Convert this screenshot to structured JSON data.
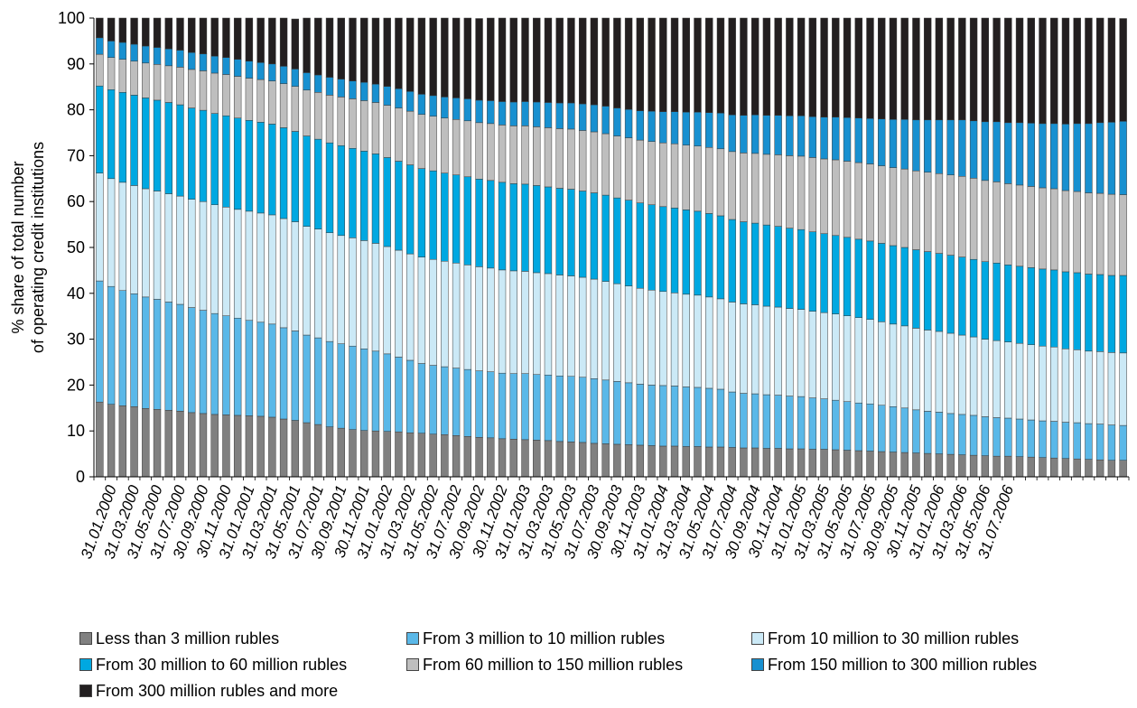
{
  "chart_data": {
    "type": "bar",
    "stacked": true,
    "title": "",
    "ylabel_lines": [
      "% share of total number",
      "of operating credit institutions"
    ],
    "xlabel": "",
    "ylim": [
      0,
      100
    ],
    "yticks": [
      0,
      10,
      20,
      30,
      40,
      50,
      60,
      70,
      80,
      90,
      100
    ],
    "tick_labels": [
      "31.01.2000",
      "31.03.2000",
      "31.05.2000",
      "31.07.2000",
      "30.09.2000",
      "30.11.2000",
      "31.01.2001",
      "31.03.2001",
      "31.05.2001",
      "31.07.2001",
      "30.09.2001",
      "30.11.2001",
      "31.01.2002",
      "31.03.2002",
      "31.05.2002",
      "31.07.2002",
      "30.09.2002",
      "30.11.2002",
      "31.01.2003",
      "31.03.2003",
      "31.05.2003",
      "31.07.2003",
      "30.09.2003",
      "30.11.2003",
      "31.01.2004",
      "31.03.2004",
      "31.05.2004",
      "31.07.2004",
      "30.09.2004",
      "30.11.2004",
      "31.01.2005",
      "31.03.2005",
      "31.05.2005",
      "31.07.2005",
      "30.09.2005",
      "30.11.2005",
      "31.01.2006",
      "31.03.2006",
      "31.05.2006",
      "31.07.2006"
    ],
    "tick_positions": [
      1,
      3,
      5,
      7,
      9,
      11,
      13,
      15,
      17,
      19,
      21,
      23,
      25,
      27,
      29,
      31,
      33,
      35,
      37,
      39,
      41,
      43,
      45,
      47,
      49,
      51,
      53,
      55,
      57,
      59,
      61,
      63,
      65,
      67,
      69,
      71,
      73,
      75,
      77,
      79
    ],
    "grid": false,
    "legend_position": "bottom",
    "series": [
      {
        "name": "Less than 3 million rubles",
        "color": "#808080",
        "values": [
          16.3,
          15.8,
          15.5,
          15.3,
          14.9,
          14.7,
          14.5,
          14.3,
          14,
          13.8,
          13.6,
          13.5,
          13.4,
          13.3,
          13.2,
          13,
          12.6,
          12.3,
          11.8,
          11.4,
          10.9,
          10.6,
          10.3,
          10.1,
          10,
          9.9,
          9.8,
          9.6,
          9.5,
          9.3,
          9.2,
          9,
          8.8,
          8.6,
          8.5,
          8.3,
          8.2,
          8.1,
          8,
          7.9,
          7.7,
          7.6,
          7.5,
          7.3,
          7.2,
          7.1,
          7,
          6.9,
          6.8,
          6.7,
          6.7,
          6.6,
          6.6,
          6.5,
          6.5,
          6.4,
          6.3,
          6.3,
          6.2,
          6.2,
          6.1,
          6.1,
          6,
          6,
          5.9,
          5.8,
          5.7,
          5.6,
          5.5,
          5.4,
          5.3,
          5.2,
          5.1,
          5,
          4.9,
          4.8,
          4.7,
          4.6,
          4.5,
          4.5,
          4.4,
          4.3,
          4.2,
          4.1,
          4,
          3.9,
          3.8,
          3.7,
          3.6,
          3.6
        ]
      },
      {
        "name": "From 3 million to 10 million rubles",
        "color": "#5ab8e8",
        "values": [
          26.4,
          25.7,
          25.1,
          24.6,
          24.3,
          24,
          23.6,
          23.3,
          22.9,
          22.5,
          22,
          21.6,
          21.2,
          20.8,
          20.5,
          20.3,
          19.9,
          19.5,
          19.1,
          18.9,
          18.6,
          18.4,
          18.2,
          17.8,
          17.4,
          16.9,
          16.3,
          15.8,
          15.2,
          15,
          14.8,
          14.7,
          14.6,
          14.5,
          14.4,
          14.3,
          14.3,
          14.4,
          14.3,
          14.3,
          14.3,
          14.3,
          14.2,
          14.1,
          13.9,
          13.7,
          13.5,
          13.3,
          13.2,
          13.2,
          13.1,
          13,
          12.9,
          12.8,
          12.6,
          12.1,
          11.9,
          11.8,
          11.7,
          11.6,
          11.5,
          11.4,
          11.2,
          11,
          10.8,
          10.6,
          10.4,
          10.3,
          10.1,
          9.9,
          9.7,
          9.4,
          9.2,
          9.1,
          8.9,
          8.8,
          8.7,
          8.5,
          8.4,
          8.3,
          8.2,
          8.1,
          8,
          8,
          7.9,
          7.9,
          7.8,
          7.8,
          7.7,
          7.6
        ]
      },
      {
        "name": "From 10 million to 30 million rubles",
        "color": "#cbe9f6",
        "values": [
          23.5,
          23.5,
          23.6,
          23.6,
          23.6,
          23.6,
          23.6,
          23.6,
          23.6,
          23.7,
          23.7,
          23.7,
          23.7,
          23.8,
          23.8,
          23.8,
          23.8,
          23.8,
          23.7,
          23.7,
          23.7,
          23.6,
          23.6,
          23.6,
          23.5,
          23.4,
          23.3,
          23.2,
          23.2,
          23.1,
          23,
          22.9,
          22.8,
          22.7,
          22.6,
          22.5,
          22.4,
          22.3,
          22.2,
          22.1,
          22,
          21.9,
          21.8,
          21.7,
          21.5,
          21.3,
          21.1,
          20.9,
          20.7,
          20.5,
          20.3,
          20.2,
          20.1,
          19.9,
          19.7,
          19.6,
          19.5,
          19.4,
          19.3,
          19.2,
          19.1,
          19,
          18.9,
          18.8,
          18.8,
          18.7,
          18.6,
          18.4,
          18.2,
          18,
          17.9,
          17.8,
          17.7,
          17.6,
          17.5,
          17.3,
          17.1,
          16.9,
          16.8,
          16.6,
          16.5,
          16.4,
          16.3,
          16.2,
          16,
          15.9,
          15.8,
          15.8,
          15.8,
          15.8
        ]
      },
      {
        "name": "From 30 million to 60 million rubles",
        "color": "#00a8e1",
        "values": [
          19,
          19.4,
          19.6,
          19.7,
          19.8,
          19.8,
          19.9,
          19.9,
          19.9,
          19.9,
          19.9,
          19.9,
          19.9,
          19.8,
          19.8,
          19.8,
          19.8,
          19.7,
          19.7,
          19.6,
          19.6,
          19.6,
          19.5,
          19.5,
          19.5,
          19.4,
          19.4,
          19.4,
          19.3,
          19.3,
          19.2,
          19.2,
          19.2,
          19.1,
          19.1,
          19.1,
          19,
          19,
          19,
          18.9,
          18.9,
          18.9,
          18.8,
          18.8,
          18.8,
          18.7,
          18.7,
          18.6,
          18.6,
          18.5,
          18.5,
          18.4,
          18.3,
          18.2,
          18.1,
          18,
          17.9,
          17.8,
          17.7,
          17.6,
          17.5,
          17.4,
          17.3,
          17.2,
          17.1,
          17.1,
          17.1,
          17.1,
          17.1,
          17.1,
          17.1,
          17.1,
          17.1,
          17,
          17,
          17,
          16.9,
          16.9,
          16.9,
          16.8,
          16.8,
          16.8,
          16.8,
          16.8,
          16.8,
          16.8,
          16.8,
          16.8,
          16.8,
          16.9
        ]
      },
      {
        "name": "From 60 million to 150 million rubles",
        "color": "#bebebe",
        "values": [
          6.9,
          7,
          7.2,
          7.4,
          7.6,
          7.8,
          8,
          8.2,
          8.4,
          8.6,
          8.8,
          9,
          9.1,
          9.2,
          9.3,
          9.4,
          9.6,
          9.8,
          10,
          10.2,
          10.4,
          10.6,
          10.8,
          11,
          11.2,
          11.4,
          11.6,
          11.7,
          11.8,
          11.9,
          12,
          12.1,
          12.2,
          12.3,
          12.4,
          12.5,
          12.6,
          12.7,
          12.8,
          12.9,
          13,
          13.1,
          13.2,
          13.3,
          13.4,
          13.5,
          13.6,
          13.7,
          13.8,
          13.9,
          14,
          14.1,
          14.2,
          14.4,
          14.6,
          14.8,
          15,
          15.2,
          15.4,
          15.6,
          15.8,
          16,
          16.2,
          16.3,
          16.5,
          16.6,
          16.7,
          16.8,
          16.9,
          17,
          17.1,
          17.2,
          17.3,
          17.4,
          17.5,
          17.6,
          17.7,
          17.7,
          17.7,
          17.7,
          17.7,
          17.7,
          17.7,
          17.7,
          17.7,
          17.7,
          17.7,
          17.7,
          17.7,
          17.6
        ]
      },
      {
        "name": "From 150 million to 300 million rubles",
        "color": "#1890d0",
        "values": [
          3.6,
          3.6,
          3.7,
          3.7,
          3.7,
          3.7,
          3.7,
          3.7,
          3.7,
          3.7,
          3.7,
          3.7,
          3.7,
          3.7,
          3.7,
          3.7,
          3.8,
          3.8,
          3.8,
          3.8,
          3.9,
          3.9,
          3.9,
          4,
          4,
          4.1,
          4.2,
          4.3,
          4.4,
          4.5,
          4.6,
          4.7,
          4.8,
          4.9,
          5,
          5.1,
          5.2,
          5.3,
          5.4,
          5.5,
          5.6,
          5.7,
          5.8,
          5.9,
          6,
          6.1,
          6.2,
          6.4,
          6.6,
          6.8,
          7,
          7.2,
          7.4,
          7.6,
          7.8,
          8,
          8.2,
          8.4,
          8.5,
          8.6,
          8.7,
          8.8,
          8.9,
          9.1,
          9.3,
          9.5,
          9.7,
          9.9,
          10.2,
          10.5,
          10.8,
          11.1,
          11.4,
          11.7,
          12,
          12.3,
          12.5,
          12.8,
          13.1,
          13.3,
          13.6,
          13.8,
          14,
          14.2,
          14.5,
          14.8,
          15.1,
          15.4,
          15.7,
          16
        ]
      },
      {
        "name": "From 300 million rubles and more",
        "color": "#231f20",
        "values": [
          4.3,
          5,
          5.3,
          5.7,
          6.1,
          6.4,
          6.7,
          7,
          7.5,
          7.8,
          8.3,
          8.6,
          9,
          9.4,
          9.7,
          10,
          10.5,
          10.9,
          11.9,
          12.4,
          12.9,
          13.3,
          13.7,
          14,
          14.4,
          14.9,
          15.4,
          16,
          16.6,
          16.9,
          17.2,
          17.4,
          17.6,
          17.8,
          18,
          18.2,
          18.3,
          18.2,
          18.3,
          18.4,
          18.5,
          18.5,
          18.7,
          18.9,
          19.2,
          19.6,
          19.9,
          20.2,
          20.3,
          20.4,
          20.4,
          20.5,
          20.5,
          20.6,
          20.7,
          21.1,
          21.2,
          21.1,
          21.2,
          21.2,
          21.3,
          21.3,
          21.5,
          21.6,
          21.6,
          21.7,
          21.8,
          21.9,
          22,
          22.1,
          22.1,
          22.2,
          22.2,
          22.2,
          22.2,
          22.2,
          22.4,
          22.6,
          22.6,
          22.8,
          22.8,
          22.9,
          23,
          23,
          23.1,
          23,
          23,
          22.8,
          22.7,
          22.4
        ]
      }
    ]
  }
}
